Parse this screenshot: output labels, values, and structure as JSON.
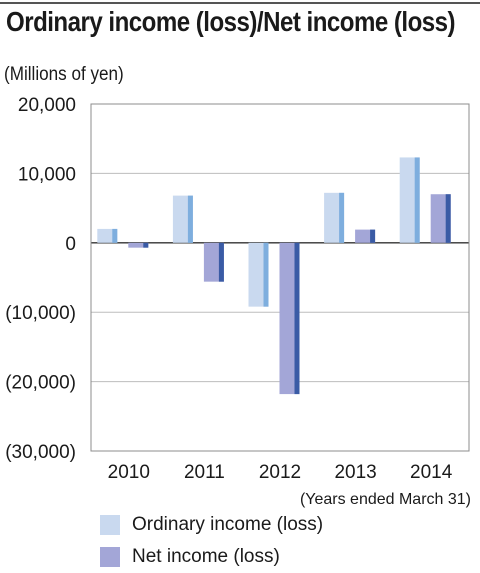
{
  "header": {
    "title": "Ordinary income (loss)/Net income (loss)",
    "unit": "(Millions of yen)"
  },
  "chart_data": {
    "type": "bar",
    "categories": [
      "2010",
      "2011",
      "2012",
      "2013",
      "2014"
    ],
    "series": [
      {
        "name": "Ordinary income (loss)",
        "values": [
          2000,
          6800,
          -9200,
          7200,
          12300
        ],
        "color": "#c9d9ef",
        "edge_color": "#7eaede"
      },
      {
        "name": "Net income (loss)",
        "values": [
          -700,
          -5600,
          -21800,
          1900,
          7000
        ],
        "color": "#a3a6d7",
        "edge_color": "#3a5ba5"
      }
    ],
    "ylim": [
      -30000,
      20000
    ],
    "yticks": [
      20000,
      10000,
      0,
      -10000,
      -20000,
      -30000
    ],
    "ytick_labels": [
      "20,000",
      "10,000",
      "0",
      "(10,000)",
      "(20,000)",
      "(30,000)"
    ],
    "xlabel": "(Years ended March 31)",
    "grid": true,
    "legend_position": "bottom-left"
  }
}
